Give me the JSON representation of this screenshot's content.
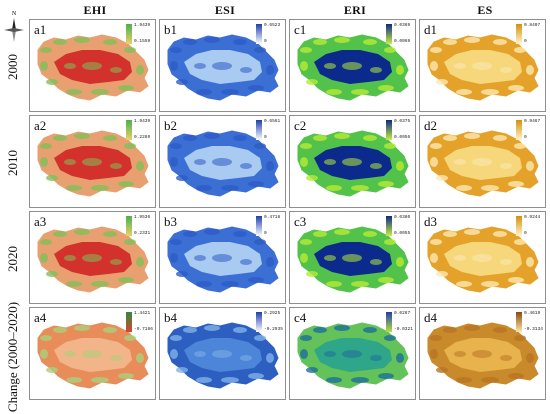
{
  "column_headers": [
    "EHI",
    "ESI",
    "ERI",
    "ES"
  ],
  "row_labels": [
    "2000",
    "2010",
    "2020",
    "Change (2000–2020)"
  ],
  "compass": {
    "letter": "N"
  },
  "panels": [
    {
      "id": "a1",
      "max": "1.9439",
      "min": "0.1559",
      "scheme": "ehi"
    },
    {
      "id": "b1",
      "max": "0.6523",
      "min": "0",
      "scheme": "esi"
    },
    {
      "id": "c1",
      "max": "0.0369",
      "min": "0.0069",
      "scheme": "eri"
    },
    {
      "id": "d1",
      "max": "0.8407",
      "min": "0",
      "scheme": "es"
    },
    {
      "id": "a2",
      "max": "1.9439",
      "min": "0.2289",
      "scheme": "ehi"
    },
    {
      "id": "b2",
      "max": "0.6561",
      "min": "0",
      "scheme": "esi"
    },
    {
      "id": "c2",
      "max": "0.0375",
      "min": "0.0056",
      "scheme": "eri"
    },
    {
      "id": "d2",
      "max": "0.9467",
      "min": "0",
      "scheme": "es"
    },
    {
      "id": "a3",
      "max": "1.9536",
      "min": "0.2331",
      "scheme": "ehi"
    },
    {
      "id": "b3",
      "max": "0.4718",
      "min": "0",
      "scheme": "esi"
    },
    {
      "id": "c3",
      "max": "0.0380",
      "min": "0.0055",
      "scheme": "eri"
    },
    {
      "id": "d3",
      "max": "0.9244",
      "min": "0",
      "scheme": "es"
    },
    {
      "id": "a4",
      "max": "1.4421",
      "min": "-0.7186",
      "scheme": "ehi_change"
    },
    {
      "id": "b4",
      "max": "0.2925",
      "min": "-0.2935",
      "scheme": "esi_change"
    },
    {
      "id": "c4",
      "max": "0.0267",
      "min": "-0.0321",
      "scheme": "eri_change"
    },
    {
      "id": "d4",
      "max": "0.4619",
      "min": "-0.3134",
      "scheme": "es_change"
    }
  ],
  "colors": {
    "ehi": {
      "bar_top": "#4caf50",
      "bar_bottom": "#e8d26a",
      "fill": "#d2322b",
      "edge": "#e8a070",
      "patch": "#7fc05a"
    },
    "esi": {
      "bar_top": "#1f3fb0",
      "bar_bottom": "#ffffff",
      "fill": "#a9cbf2",
      "edge": "#3b6fd4",
      "patch": "#2e5bc6"
    },
    "eri": {
      "bar_top": "#0b2a8c",
      "bar_bottom": "#c7f03a",
      "fill": "#0b2a8c",
      "edge": "#52c24a",
      "patch": "#b6ea35"
    },
    "es": {
      "bar_top": "#d4900f",
      "bar_bottom": "#fff6c9",
      "fill": "#f6d77c",
      "edge": "#e5a22a",
      "patch": "#fbeab0"
    },
    "ehi_change": {
      "bar_top": "#2e8b3e",
      "bar_bottom": "#d8452e",
      "fill": "#f2b589",
      "edge": "#e88c5a",
      "patch": "#a9d07a"
    },
    "esi_change": {
      "bar_top": "#1f3fb0",
      "bar_bottom": "#ffffff",
      "fill": "#4d86d9",
      "edge": "#2d5fc0",
      "patch": "#7fb0ea"
    },
    "eri_change": {
      "bar_top": "#1f3fb0",
      "bar_bottom": "#b9e23a",
      "fill": "#2fa58a",
      "edge": "#64c25a",
      "patch": "#1d6f9a"
    },
    "es_change": {
      "bar_top": "#8a4a10",
      "bar_bottom": "#fde9a8",
      "fill": "#e8b34c",
      "edge": "#c88a2a",
      "patch": "#b87424"
    }
  }
}
